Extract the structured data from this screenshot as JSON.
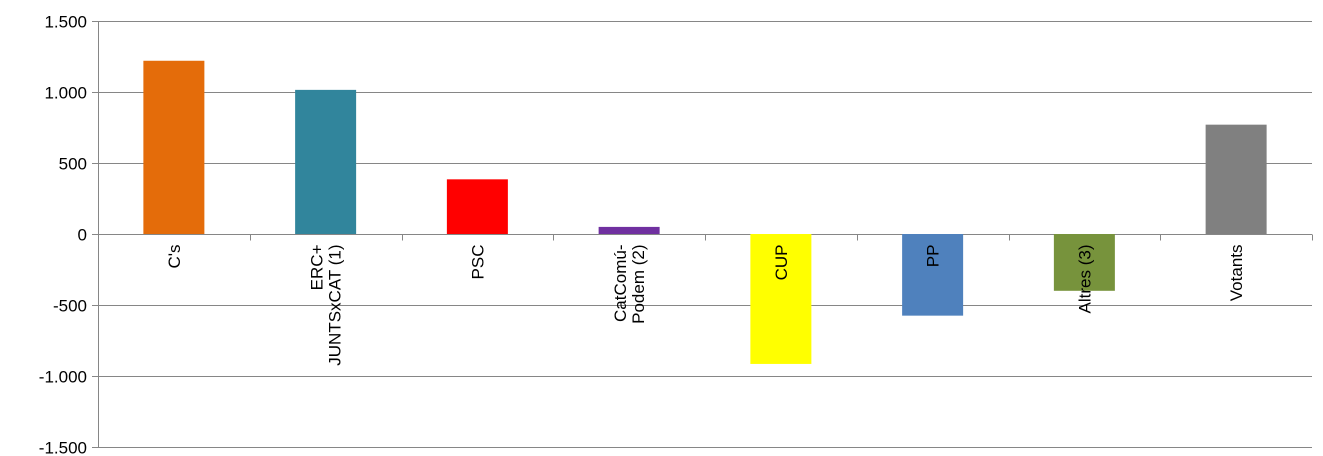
{
  "chart_data": {
    "type": "bar",
    "title": "",
    "xlabel": "",
    "ylabel": "",
    "ylim": [
      -1500,
      1500
    ],
    "yticks": [
      {
        "value": 1500,
        "label": "1.500"
      },
      {
        "value": 1000,
        "label": "1.000"
      },
      {
        "value": 500,
        "label": "500"
      },
      {
        "value": 0,
        "label": "0"
      },
      {
        "value": -500,
        "label": "-500"
      },
      {
        "value": -1000,
        "label": "-1.000"
      },
      {
        "value": -1500,
        "label": "-1.500"
      }
    ],
    "grid": true,
    "legend": "none",
    "categories": [
      {
        "lines": [
          "C's"
        ],
        "value": 1220,
        "color": "#E46C0A"
      },
      {
        "lines": [
          "ERC+",
          "JUNTSxCAT (1)"
        ],
        "value": 1015,
        "color": "#31859C"
      },
      {
        "lines": [
          "PSC"
        ],
        "value": 385,
        "color": "#FF0000"
      },
      {
        "lines": [
          "CatComú-",
          "Podem (2)"
        ],
        "value": 50,
        "color": "#7030A0"
      },
      {
        "lines": [
          "CUP"
        ],
        "value": -915,
        "color": "#FFFF00"
      },
      {
        "lines": [
          "PP"
        ],
        "value": -575,
        "color": "#4F81BD"
      },
      {
        "lines": [
          "Altres (3)"
        ],
        "value": -400,
        "color": "#77933C"
      },
      {
        "lines": [
          "Votants"
        ],
        "value": 770,
        "color": "#808080"
      }
    ]
  }
}
